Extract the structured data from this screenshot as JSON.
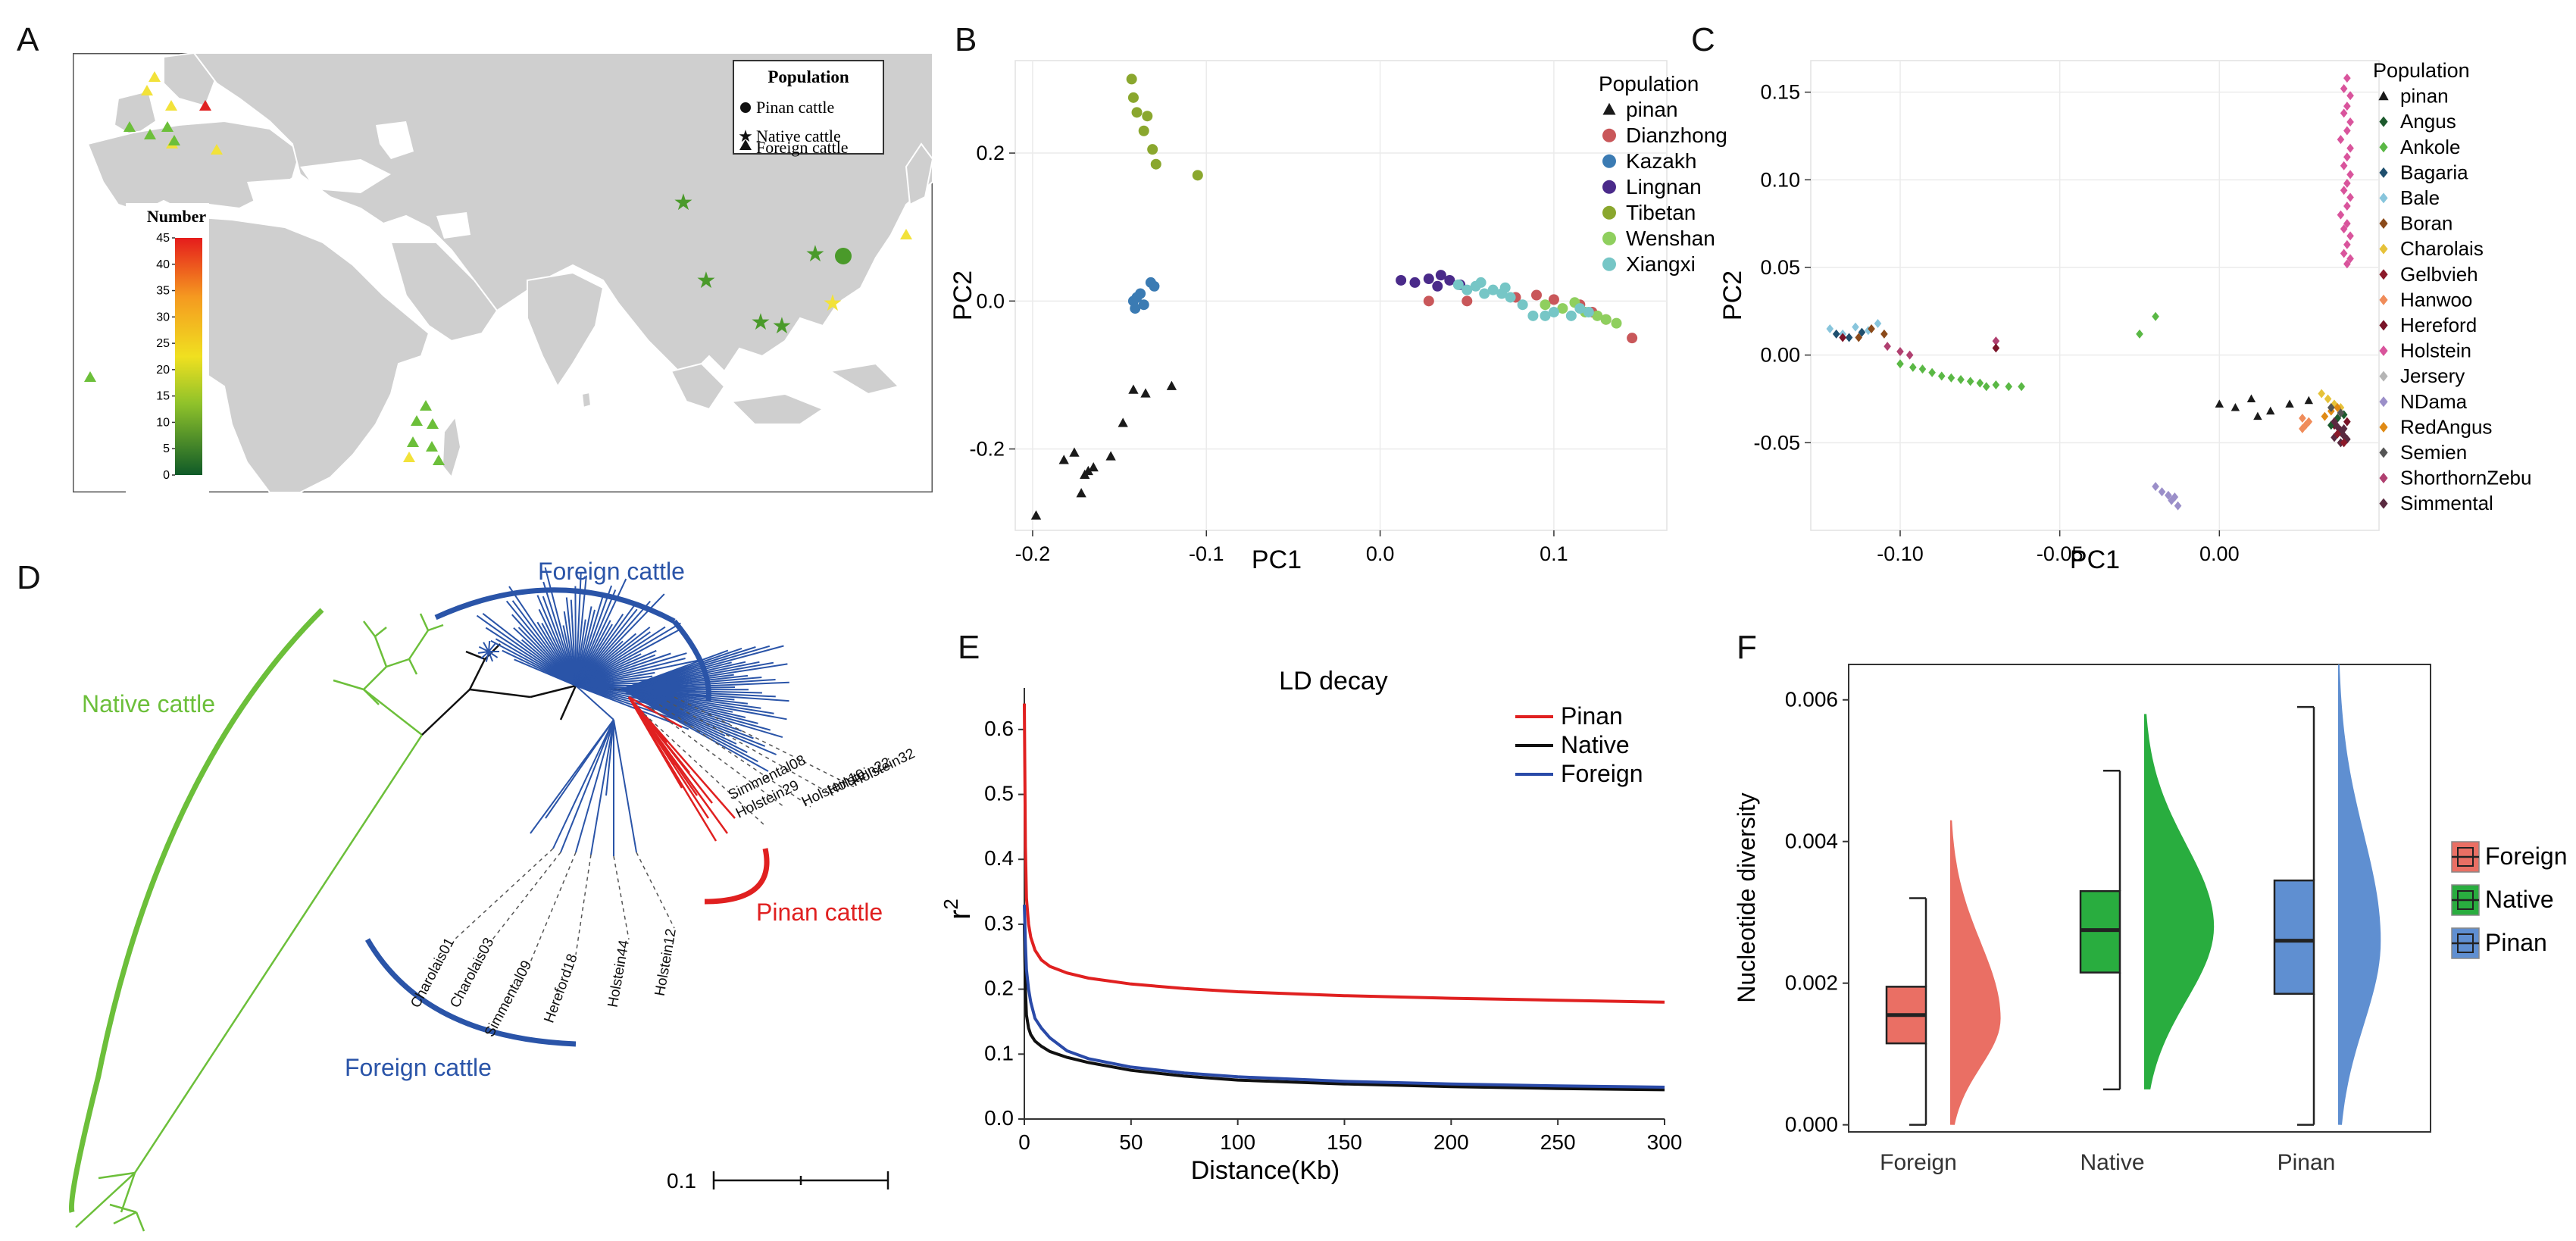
{
  "panel_labels": [
    "A",
    "B",
    "C",
    "D",
    "E",
    "F"
  ],
  "map": {
    "legend_title": "Population",
    "legend_items": [
      {
        "shape": "circle",
        "label": "Pinan cattle"
      },
      {
        "shape": "star",
        "label": "Native cattle"
      },
      {
        "shape": "triangle",
        "label": "Foreign cattle"
      }
    ],
    "colorbar_title": "Number",
    "colorbar_ticks": [
      "0",
      "5",
      "10",
      "15",
      "20",
      "25",
      "30",
      "35",
      "40",
      "45"
    ],
    "land_color": "#cfcfcf",
    "water_color": "#ffffff"
  },
  "chart_data": [
    {
      "id": "B",
      "type": "scatter",
      "xlabel": "PC1",
      "ylabel": "PC2",
      "xlim": [
        -0.21,
        0.165
      ],
      "ylim": [
        -0.31,
        0.325
      ],
      "xticks": [
        "-0.2",
        "-0.1",
        "0.0",
        "0.1"
      ],
      "yticks": [
        "-0.2",
        "0.0",
        "0.2"
      ],
      "legend_title": "Population",
      "series": [
        {
          "name": "pinan",
          "color": "#1a1a1a",
          "marker": "triangle",
          "x": [
            -0.198,
            -0.182,
            -0.176,
            -0.17,
            -0.172,
            -0.165,
            -0.168,
            -0.155,
            -0.148,
            -0.142,
            -0.135,
            -0.12
          ],
          "y": [
            -0.29,
            -0.215,
            -0.205,
            -0.235,
            -0.26,
            -0.225,
            -0.23,
            -0.21,
            -0.165,
            -0.12,
            -0.125,
            -0.115
          ]
        },
        {
          "name": "Dianzhong",
          "color": "#c9575a",
          "marker": "circle",
          "x": [
            0.028,
            0.05,
            0.078,
            0.09,
            0.1,
            0.115,
            0.122,
            0.13,
            0.145
          ],
          "y": [
            0.0,
            0.0,
            0.005,
            0.008,
            0.002,
            -0.005,
            -0.015,
            -0.025,
            -0.05
          ]
        },
        {
          "name": "Kazakh",
          "color": "#3b7bb3",
          "marker": "circle",
          "x": [
            -0.142,
            -0.14,
            -0.138,
            -0.136,
            -0.132,
            -0.13,
            -0.141
          ],
          "y": [
            0.0,
            0.005,
            0.01,
            -0.005,
            0.025,
            0.02,
            -0.01
          ]
        },
        {
          "name": "Lingnan",
          "color": "#4a2a8a",
          "marker": "circle",
          "x": [
            0.012,
            0.02,
            0.028,
            0.035,
            0.04,
            0.046,
            0.033
          ],
          "y": [
            0.028,
            0.025,
            0.03,
            0.035,
            0.028,
            0.022,
            0.02
          ]
        },
        {
          "name": "Tibetan",
          "color": "#8aa72e",
          "marker": "circle",
          "x": [
            -0.143,
            -0.142,
            -0.14,
            -0.136,
            -0.134,
            -0.131,
            -0.129,
            -0.105
          ],
          "y": [
            0.3,
            0.275,
            0.255,
            0.23,
            0.25,
            0.205,
            0.185,
            0.17
          ]
        },
        {
          "name": "Wenshan",
          "color": "#8fcf5e",
          "marker": "circle",
          "x": [
            0.095,
            0.105,
            0.112,
            0.118,
            0.125,
            0.13,
            0.136
          ],
          "y": [
            -0.005,
            -0.01,
            -0.002,
            -0.015,
            -0.02,
            -0.025,
            -0.03
          ]
        },
        {
          "name": "Xiangxi",
          "color": "#76c6c6",
          "marker": "circle",
          "x": [
            0.045,
            0.05,
            0.055,
            0.06,
            0.065,
            0.07,
            0.075,
            0.082,
            0.088,
            0.095,
            0.1,
            0.11,
            0.115,
            0.12,
            0.058,
            0.072
          ],
          "y": [
            0.022,
            0.015,
            0.02,
            0.01,
            0.015,
            0.01,
            0.005,
            -0.005,
            -0.02,
            -0.02,
            -0.015,
            -0.02,
            -0.01,
            -0.015,
            0.025,
            0.018
          ]
        }
      ]
    },
    {
      "id": "C",
      "type": "scatter",
      "xlabel": "PC1",
      "ylabel": "PC2",
      "xlim": [
        -0.128,
        0.05
      ],
      "ylim": [
        -0.1,
        0.168
      ],
      "xticks": [
        "-0.10",
        "-0.05",
        "0.00"
      ],
      "yticks": [
        "-0.05",
        "0.00",
        "0.05",
        "0.10",
        "0.15"
      ],
      "legend_title": "Population",
      "legend": [
        {
          "name": "pinan",
          "color": "#1a1a1a",
          "marker": "triangle"
        },
        {
          "name": "Angus",
          "color": "#1d5a2d",
          "marker": "diamond"
        },
        {
          "name": "Ankole",
          "color": "#5ab845",
          "marker": "diamond"
        },
        {
          "name": "Bagaria",
          "color": "#1f4f6e",
          "marker": "diamond"
        },
        {
          "name": "Bale",
          "color": "#88c5dc",
          "marker": "diamond"
        },
        {
          "name": "Boran",
          "color": "#8b4a1a",
          "marker": "diamond"
        },
        {
          "name": "Charolais",
          "color": "#e6c23a",
          "marker": "diamond"
        },
        {
          "name": "Gelbvieh",
          "color": "#8c1a2a",
          "marker": "diamond"
        },
        {
          "name": "Hanwoo",
          "color": "#f08c5a",
          "marker": "diamond"
        },
        {
          "name": "Hereford",
          "color": "#7a1428",
          "marker": "diamond"
        },
        {
          "name": "Holstein",
          "color": "#d9549c",
          "marker": "diamond"
        },
        {
          "name": "Jersery",
          "color": "#b5b5b5",
          "marker": "diamond"
        },
        {
          "name": "NDama",
          "color": "#9b8fc9",
          "marker": "diamond"
        },
        {
          "name": "RedAngus",
          "color": "#e08a14",
          "marker": "diamond"
        },
        {
          "name": "Semien",
          "color": "#555555",
          "marker": "diamond"
        },
        {
          "name": "ShorthornZebu",
          "color": "#b04070",
          "marker": "diamond"
        },
        {
          "name": "Simmental",
          "color": "#5a2a40",
          "marker": "diamond"
        }
      ],
      "series": [
        {
          "name": "pinan",
          "color": "#1a1a1a",
          "marker": "triangle",
          "x": [
            0.0,
            0.005,
            0.01,
            0.016,
            0.022,
            0.028,
            0.012
          ],
          "y": [
            -0.028,
            -0.03,
            -0.025,
            -0.032,
            -0.028,
            -0.026,
            -0.035
          ]
        },
        {
          "name": "Holstein",
          "color": "#d9549c",
          "marker": "diamond",
          "x": [
            0.04,
            0.039,
            0.041,
            0.04,
            0.039,
            0.041,
            0.04,
            0.038,
            0.041,
            0.04,
            0.039,
            0.041,
            0.04,
            0.039,
            0.041,
            0.04,
            0.038,
            0.04,
            0.039,
            0.041,
            0.04,
            0.039,
            0.041,
            0.04
          ],
          "y": [
            0.158,
            0.152,
            0.148,
            0.142,
            0.138,
            0.133,
            0.128,
            0.123,
            0.118,
            0.113,
            0.108,
            0.103,
            0.098,
            0.094,
            0.09,
            0.085,
            0.08,
            0.075,
            0.072,
            0.068,
            0.063,
            0.058,
            0.055,
            0.052
          ]
        },
        {
          "name": "Ankole",
          "color": "#5ab845",
          "marker": "diamond",
          "x": [
            -0.1,
            -0.096,
            -0.093,
            -0.09,
            -0.087,
            -0.084,
            -0.081,
            -0.078,
            -0.075,
            -0.073,
            -0.07,
            -0.066,
            -0.062,
            -0.025,
            -0.02
          ],
          "y": [
            -0.005,
            -0.007,
            -0.008,
            -0.01,
            -0.012,
            -0.013,
            -0.014,
            -0.015,
            -0.016,
            -0.018,
            -0.017,
            -0.018,
            -0.018,
            0.012,
            0.022
          ]
        },
        {
          "name": "Bale",
          "color": "#88c5dc",
          "marker": "diamond",
          "x": [
            -0.122,
            -0.118,
            -0.114,
            -0.11,
            -0.107
          ],
          "y": [
            0.015,
            0.012,
            0.016,
            0.014,
            0.018
          ]
        },
        {
          "name": "Bagaria",
          "color": "#1f4f6e",
          "marker": "diamond",
          "x": [
            -0.12,
            -0.116,
            -0.112
          ],
          "y": [
            0.012,
            0.01,
            0.013
          ]
        },
        {
          "name": "Boran",
          "color": "#8b4a1a",
          "marker": "diamond",
          "x": [
            -0.113,
            -0.109,
            -0.105
          ],
          "y": [
            0.01,
            0.015,
            0.012
          ]
        },
        {
          "name": "ShorthornZebu",
          "color": "#b04070",
          "marker": "diamond",
          "x": [
            -0.104,
            -0.1,
            -0.097,
            -0.07
          ],
          "y": [
            0.005,
            0.002,
            0.0,
            0.008
          ]
        },
        {
          "name": "Hereford",
          "color": "#7a1428",
          "marker": "diamond",
          "x": [
            -0.118,
            -0.07,
            0.036,
            0.038,
            0.04
          ],
          "y": [
            0.01,
            0.004,
            -0.04,
            -0.043,
            -0.038
          ]
        },
        {
          "name": "NDama",
          "color": "#9b8fc9",
          "marker": "diamond",
          "x": [
            -0.02,
            -0.018,
            -0.016,
            -0.015,
            -0.014,
            -0.013
          ],
          "y": [
            -0.075,
            -0.078,
            -0.08,
            -0.083,
            -0.081,
            -0.086
          ]
        },
        {
          "name": "Hanwoo",
          "color": "#f08c5a",
          "marker": "diamond",
          "x": [
            0.026,
            0.027,
            0.028,
            0.026
          ],
          "y": [
            -0.036,
            -0.04,
            -0.038,
            -0.042
          ]
        },
        {
          "name": "Charolais",
          "color": "#e6c23a",
          "marker": "diamond",
          "x": [
            0.032,
            0.034,
            0.036,
            0.038
          ],
          "y": [
            -0.022,
            -0.025,
            -0.028,
            -0.03
          ]
        },
        {
          "name": "RedAngus",
          "color": "#e08a14",
          "marker": "diamond",
          "x": [
            0.033,
            0.035,
            0.037
          ],
          "y": [
            -0.035,
            -0.032,
            -0.03
          ]
        },
        {
          "name": "Angus",
          "color": "#1d5a2d",
          "marker": "diamond",
          "x": [
            0.035,
            0.037,
            0.039
          ],
          "y": [
            -0.04,
            -0.036,
            -0.034
          ]
        },
        {
          "name": "Simmental",
          "color": "#5a2a40",
          "marker": "diamond",
          "x": [
            0.036,
            0.037,
            0.038,
            0.039,
            0.04,
            0.038,
            0.036,
            0.039
          ],
          "y": [
            -0.038,
            -0.041,
            -0.044,
            -0.046,
            -0.048,
            -0.05,
            -0.047,
            -0.042
          ]
        },
        {
          "name": "Gelbvieh",
          "color": "#8c1a2a",
          "marker": "diamond",
          "x": [
            0.037,
            0.039
          ],
          "y": [
            -0.045,
            -0.05
          ]
        },
        {
          "name": "Semien",
          "color": "#555555",
          "marker": "diamond",
          "x": [
            0.035,
            0.038
          ],
          "y": [
            -0.03,
            -0.033
          ]
        }
      ]
    },
    {
      "id": "E",
      "type": "line",
      "title": "LD decay",
      "xlabel": "Distance(Kb)",
      "ylabel": "r",
      "ylabel_sup": "2",
      "xlim": [
        0,
        300
      ],
      "ylim": [
        0,
        0.65
      ],
      "xticks": [
        "0",
        "50",
        "100",
        "150",
        "200",
        "250",
        "300"
      ],
      "yticks": [
        "0.0",
        "0.1",
        "0.2",
        "0.3",
        "0.4",
        "0.5",
        "0.6"
      ],
      "series": [
        {
          "name": "Pinan",
          "color": "#e02020",
          "x": [
            0,
            0.5,
            1,
            2,
            3,
            5,
            8,
            12,
            20,
            30,
            50,
            75,
            100,
            150,
            200,
            250,
            300
          ],
          "y": [
            0.64,
            0.42,
            0.34,
            0.3,
            0.28,
            0.26,
            0.245,
            0.235,
            0.225,
            0.217,
            0.208,
            0.201,
            0.196,
            0.19,
            0.186,
            0.183,
            0.18
          ]
        },
        {
          "name": "Native",
          "color": "#111111",
          "x": [
            0,
            0.5,
            1,
            2,
            3,
            5,
            8,
            12,
            20,
            30,
            50,
            75,
            100,
            150,
            200,
            250,
            300
          ],
          "y": [
            0.3,
            0.2,
            0.16,
            0.14,
            0.13,
            0.12,
            0.112,
            0.104,
            0.095,
            0.087,
            0.075,
            0.066,
            0.06,
            0.054,
            0.05,
            0.047,
            0.045
          ]
        },
        {
          "name": "Foreign",
          "color": "#2a4aa8",
          "x": [
            0,
            0.5,
            1,
            2,
            3,
            5,
            8,
            12,
            20,
            30,
            50,
            75,
            100,
            150,
            200,
            250,
            300
          ],
          "y": [
            0.33,
            0.27,
            0.23,
            0.2,
            0.18,
            0.155,
            0.14,
            0.125,
            0.105,
            0.093,
            0.08,
            0.071,
            0.065,
            0.058,
            0.054,
            0.051,
            0.049
          ]
        }
      ]
    },
    {
      "id": "F",
      "type": "box",
      "ylabel": "Nucleotide diversity",
      "ylim": [
        -0.0001,
        0.0065
      ],
      "yticks": [
        "0.000",
        "0.002",
        "0.004",
        "0.006"
      ],
      "categories": [
        "Foreign",
        "Native",
        "Pinan"
      ],
      "series": [
        {
          "name": "Foreign",
          "color": "#ea6f64",
          "min": 0.0,
          "q1": 0.00115,
          "median": 0.00155,
          "q3": 0.00195,
          "max": 0.0032,
          "density_peak": 0.0015,
          "density_top": 0.0043,
          "density_width": 0.26
        },
        {
          "name": "Native",
          "color": "#29ad3f",
          "min": 0.0005,
          "q1": 0.00215,
          "median": 0.00275,
          "q3": 0.0033,
          "max": 0.005,
          "density_peak": 0.0028,
          "density_top": 0.0058,
          "density_width": 0.36
        },
        {
          "name": "Pinan",
          "color": "#5f8fd1",
          "min": 0.0,
          "q1": 0.00185,
          "median": 0.0026,
          "q3": 0.00345,
          "max": 0.0059,
          "density_peak": 0.0026,
          "density_top": 0.0065,
          "density_width": 0.22
        }
      ]
    }
  ],
  "tree": {
    "clade_labels": [
      {
        "text": "Native cattle",
        "color": "#6cbf3a"
      },
      {
        "text": "Foreign cattle",
        "color": "#2a54a8"
      },
      {
        "text": "Pinan cattle",
        "color": "#e02020"
      },
      {
        "text": "Foreign cattle",
        "color": "#2a54a8"
      }
    ],
    "leaf_labels": [
      "Holstein32",
      "Holstein22",
      "Holstein10",
      "Simmental08",
      "Holstein29",
      "Charolais01",
      "Charolais03",
      "Simmental09",
      "Hereford18",
      "Holstein44",
      "Holstein12"
    ],
    "scale_label": "0.1"
  }
}
